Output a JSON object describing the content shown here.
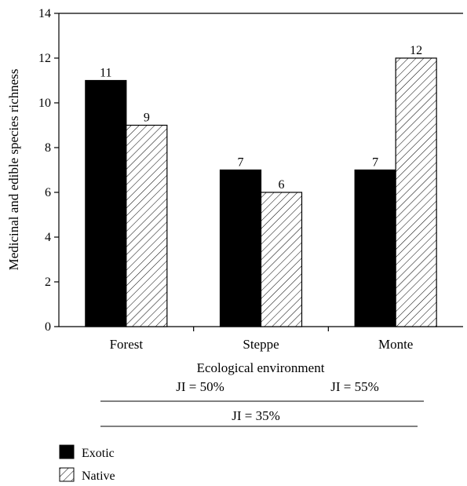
{
  "chart_data": {
    "type": "bar",
    "categories": [
      "Forest",
      "Steppe",
      "Monte"
    ],
    "series": [
      {
        "name": "Exotic",
        "values": [
          11,
          7,
          7
        ],
        "pattern": "solid",
        "color": "#000000"
      },
      {
        "name": "Native",
        "values": [
          9,
          6,
          12
        ],
        "pattern": "hatched",
        "color": "#ffffff"
      }
    ],
    "data_labels": [
      [
        "11",
        "7",
        "7"
      ],
      [
        "9",
        "6",
        "12"
      ]
    ],
    "title": "",
    "xlabel": "Ecological environment",
    "ylabel": "Medicinal and edible species richness",
    "ylim": [
      0,
      14
    ],
    "yticks": [
      "0",
      "2",
      "4",
      "6",
      "8",
      "10",
      "12",
      "14"
    ],
    "grid": false,
    "legend": "bottom-left",
    "similarity_indices": [
      {
        "label": "JI = 50%",
        "between": [
          "Forest",
          "Steppe"
        ]
      },
      {
        "label": "JI = 55%",
        "between": [
          "Steppe",
          "Monte"
        ]
      },
      {
        "label": "JI = 35%",
        "between": [
          "Forest",
          "Monte"
        ]
      }
    ]
  }
}
